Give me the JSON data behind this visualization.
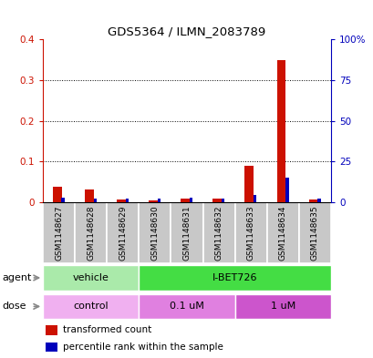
{
  "title": "GDS5364 / ILMN_2083789",
  "samples": [
    "GSM1148627",
    "GSM1148628",
    "GSM1148629",
    "GSM1148630",
    "GSM1148631",
    "GSM1148632",
    "GSM1148633",
    "GSM1148634",
    "GSM1148635"
  ],
  "red_values": [
    0.038,
    0.032,
    0.007,
    0.005,
    0.01,
    0.008,
    0.09,
    0.348,
    0.007
  ],
  "blue_values": [
    0.012,
    0.01,
    0.008,
    0.01,
    0.012,
    0.01,
    0.018,
    0.06,
    0.008
  ],
  "ylim_left": [
    0.0,
    0.4
  ],
  "ylim_right": [
    0,
    100
  ],
  "yticks_left": [
    0.0,
    0.1,
    0.2,
    0.3,
    0.4
  ],
  "ytick_labels_left": [
    "0",
    "0.1",
    "0.2",
    "0.3",
    "0.4"
  ],
  "yticks_right": [
    0,
    25,
    50,
    75,
    100
  ],
  "ytick_labels_right": [
    "0",
    "25",
    "50",
    "75",
    "100%"
  ],
  "agent_groups": [
    {
      "label": "vehicle",
      "start": 0,
      "end": 3,
      "color": "#AAEAAA"
    },
    {
      "label": "I-BET726",
      "start": 3,
      "end": 9,
      "color": "#44DD44"
    }
  ],
  "dose_groups": [
    {
      "label": "control",
      "start": 0,
      "end": 3,
      "color": "#F0B0F0"
    },
    {
      "label": "0.1 uM",
      "start": 3,
      "end": 6,
      "color": "#E080E0"
    },
    {
      "label": "1 uM",
      "start": 6,
      "end": 9,
      "color": "#CC55CC"
    }
  ],
  "bar_bg_color": "#C8C8C8",
  "plot_bg_color": "#FFFFFF",
  "red_color": "#CC1100",
  "blue_color": "#0000BB",
  "legend_items": [
    {
      "label": "transformed count",
      "color": "#CC1100"
    },
    {
      "label": "percentile rank within the sample",
      "color": "#0000BB"
    }
  ]
}
